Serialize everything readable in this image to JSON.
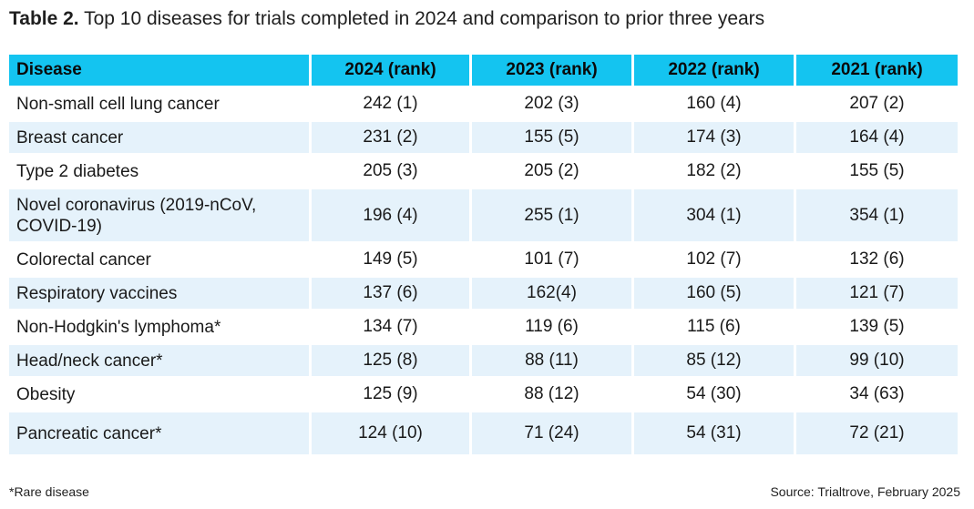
{
  "title": {
    "label": "Table 2.",
    "text": "Top 10 diseases for trials completed in 2024 and comparison to prior three years"
  },
  "table": {
    "headers": [
      "Disease",
      "2024 (rank)",
      "2023 (rank)",
      "2022 (rank)",
      "2021 (rank)"
    ],
    "rows": [
      [
        "Non-small cell lung cancer",
        "242 (1)",
        "202 (3)",
        "160 (4)",
        "207 (2)"
      ],
      [
        "Breast cancer",
        "231 (2)",
        "155 (5)",
        "174 (3)",
        "164 (4)"
      ],
      [
        "Type 2 diabetes",
        "205 (3)",
        "205 (2)",
        "182 (2)",
        "155 (5)"
      ],
      [
        "Novel coronavirus (2019-nCoV, COVID-19)",
        "196 (4)",
        "255 (1)",
        "304 (1)",
        "354 (1)"
      ],
      [
        "Colorectal cancer",
        "149 (5)",
        "101 (7)",
        "102 (7)",
        "132 (6)"
      ],
      [
        "Respiratory vaccines",
        "137 (6)",
        "162(4)",
        "160 (5)",
        "121 (7)"
      ],
      [
        "Non-Hodgkin's lymphoma*",
        "134 (7)",
        "119 (6)",
        "115 (6)",
        "139 (5)"
      ],
      [
        "Head/neck cancer*",
        "125 (8)",
        "88 (11)",
        "85 (12)",
        "99 (10)"
      ],
      [
        "Obesity",
        "125 (9)",
        "88 (12)",
        "54 (30)",
        "34 (63)"
      ],
      [
        "Pancreatic cancer*",
        "124 (10)",
        "71 (24)",
        "54 (31)",
        "72 (21)"
      ]
    ]
  },
  "footnote": "*Rare disease",
  "source": "Source: Trialtrove, February 2025",
  "colors": {
    "header_bg": "#14c4f0",
    "stripe_bg": "#e5f2fb"
  }
}
